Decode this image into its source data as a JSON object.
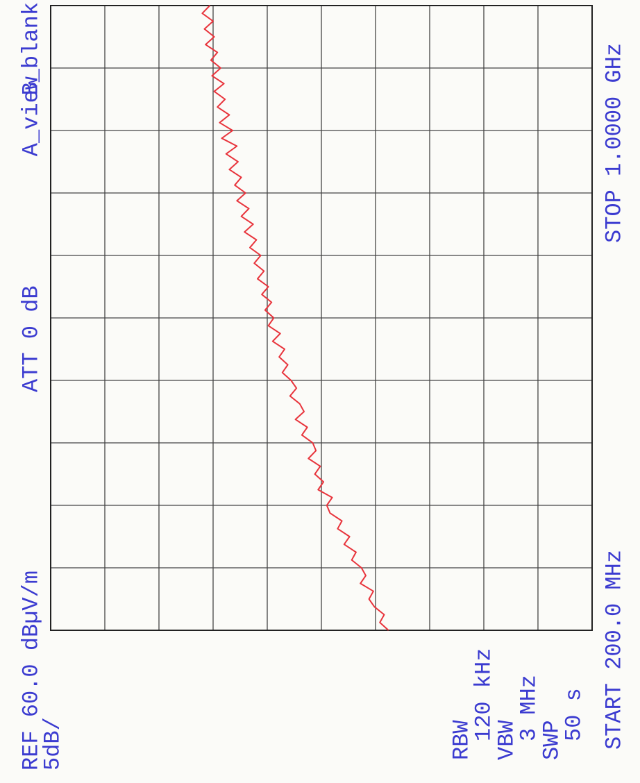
{
  "chart_data": {
    "type": "line",
    "ref_label": "REF 60.0 dBµV/m",
    "scale_label": "5dB/",
    "att_label": "ATT 0 dB",
    "start_label": "START 200.0 MHz",
    "stop_label": "STOP 1.0000 GHz",
    "settings": [
      {
        "label": "RBW",
        "value": "120 kHz"
      },
      {
        "label": "VBW",
        "value": "3 MHz"
      },
      {
        "label": "SWP",
        "value": "50 s"
      }
    ],
    "blank_trace": {
      "name": "B_blank",
      "color": "#2e8b3a"
    },
    "xlim": [
      200,
      1000
    ],
    "ylim": [
      10,
      60
    ],
    "xticks": [
      200,
      280,
      360,
      440,
      520,
      600,
      680,
      760,
      840,
      920,
      1000
    ],
    "yticks": [
      10,
      15,
      20,
      25,
      30,
      35,
      40,
      45,
      50,
      55,
      60
    ],
    "grid": true,
    "x": [
      200,
      210,
      220,
      230,
      240,
      250,
      260,
      270,
      280,
      290,
      300,
      310,
      320,
      330,
      340,
      350,
      360,
      370,
      380,
      390,
      400,
      410,
      420,
      430,
      440,
      450,
      460,
      470,
      480,
      490,
      500,
      510,
      520,
      530,
      540,
      550,
      560,
      570,
      580,
      590,
      600,
      610,
      620,
      630,
      640,
      650,
      660,
      670,
      680,
      690,
      700,
      710,
      720,
      730,
      740,
      750,
      760,
      770,
      780,
      790,
      800,
      810,
      820,
      830,
      840,
      850,
      860,
      870,
      880,
      890,
      900,
      910,
      920,
      930,
      940,
      950,
      960,
      970,
      980,
      990,
      1000
    ],
    "series": [
      {
        "name": "A_view",
        "color": "#e8343c",
        "values": [
          28.8,
          29.6,
          29.2,
          30.1,
          30.6,
          30.2,
          31.4,
          30.9,
          31.3,
          32.2,
          31.8,
          32.9,
          32.4,
          33.5,
          33.1,
          34.2,
          34.5,
          34.0,
          35.3,
          34.8,
          35.6,
          35.1,
          36.2,
          35.5,
          35.8,
          36.8,
          36.3,
          37.4,
          36.6,
          37.0,
          37.9,
          37.3,
          37.8,
          38.6,
          38.1,
          38.9,
          38.4,
          39.5,
          38.8,
          39.9,
          39.4,
          40.2,
          39.6,
          40.5,
          39.9,
          40.9,
          40.3,
          41.2,
          40.6,
          41.6,
          41.0,
          42.1,
          41.3,
          42.4,
          41.7,
          42.8,
          42.0,
          43.0,
          42.4,
          43.5,
          42.7,
          43.8,
          42.8,
          44.2,
          43.2,
          44.4,
          43.5,
          44.6,
          43.9,
          44.9,
          44.0,
          45.1,
          44.3,
          45.2,
          44.6,
          45.7,
          44.9,
          45.8,
          45.0,
          46.0,
          45.3
        ]
      }
    ]
  }
}
